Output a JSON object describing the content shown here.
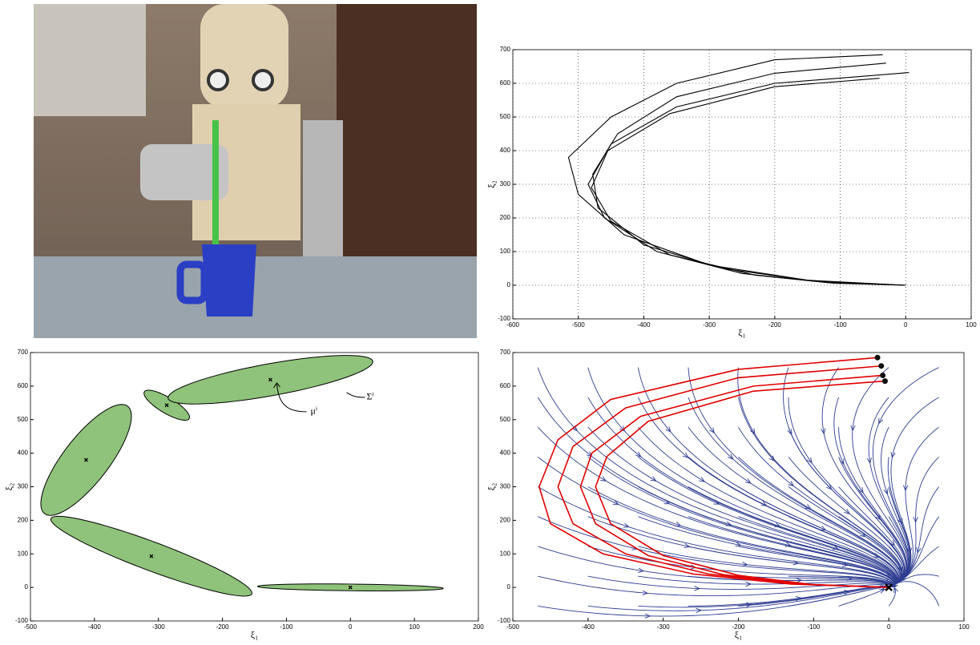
{
  "chart_data": [
    {
      "type": "line",
      "xlabel": "ξ₁",
      "ylabel": "ξ₂",
      "xlim": [
        -600,
        100
      ],
      "ylim": [
        -100,
        700
      ],
      "xticks": [
        -600,
        -500,
        -400,
        -300,
        -200,
        -100,
        0,
        100
      ],
      "yticks": [
        -100,
        0,
        100,
        200,
        300,
        400,
        500,
        600,
        700
      ],
      "grid": true,
      "series": [
        {
          "color": "#000000",
          "x": [
            -35,
            -200,
            -350,
            -450,
            -515,
            -500,
            -430,
            -300,
            -150,
            0
          ],
          "values": [
            685,
            670,
            600,
            500,
            380,
            270,
            150,
            60,
            15,
            0
          ]
        },
        {
          "color": "#000000",
          "x": [
            -30,
            -200,
            -350,
            -440,
            -478,
            -470,
            -400,
            -280,
            -140,
            0
          ],
          "values": [
            660,
            630,
            560,
            450,
            330,
            230,
            120,
            50,
            12,
            0
          ]
        },
        {
          "color": "#000000",
          "x": [
            5,
            -200,
            -350,
            -450,
            -485,
            -460,
            -380,
            -250,
            -120,
            0
          ],
          "values": [
            632,
            600,
            530,
            420,
            300,
            200,
            100,
            35,
            8,
            0
          ]
        },
        {
          "color": "#000000",
          "x": [
            -40,
            -200,
            -360,
            -455,
            -480,
            -450,
            -360,
            -230,
            -110,
            0
          ],
          "values": [
            615,
            590,
            510,
            400,
            290,
            190,
            90,
            30,
            6,
            0
          ]
        }
      ]
    },
    {
      "type": "ellipse",
      "xlabel": "ξ₁",
      "ylabel": "ξ₂",
      "xlim": [
        -500,
        200
      ],
      "ylim": [
        -100,
        700
      ],
      "xticks": [
        -500,
        -400,
        -300,
        -200,
        -100,
        0,
        100,
        200
      ],
      "yticks": [
        -100,
        0,
        100,
        200,
        300,
        400,
        500,
        600,
        700
      ],
      "grid": false,
      "color": "#8fc27a",
      "annotations": [
        "μⁱ",
        "Σⁱ"
      ],
      "components": [
        {
          "mean": [
            -413,
            380
          ],
          "cov": [
            [
              5009,
              9224
            ],
            [
              9224,
              27364
            ]
          ]
        },
        {
          "mean": [
            -311,
            93
          ],
          "cov": [
            [
              24713,
              -17264
            ],
            [
              -17264,
              14144
            ]
          ]
        },
        {
          "mean": [
            -287,
            543
          ],
          "cov": [
            [
              1267,
              -1270
            ],
            [
              -1270,
              2000
            ]
          ]
        },
        {
          "mean": [
            -125,
            619
          ],
          "cov": [
            [
              25619,
              8593
            ],
            [
              8593,
              5234
            ]
          ]
        },
        {
          "mean": [
            0,
            0
          ],
          "cov": [
            [
              21025,
              -435
            ],
            [
              -435,
              109
            ]
          ]
        }
      ]
    },
    {
      "type": "streamplot",
      "xlabel": "ξ₁",
      "ylabel": "ξ₂",
      "xlim": [
        -500,
        100
      ],
      "ylim": [
        -100,
        700
      ],
      "xticks": [
        -500,
        -400,
        -300,
        -200,
        -100,
        0,
        100
      ],
      "yticks": [
        -100,
        0,
        100,
        200,
        300,
        400,
        500,
        600,
        700
      ],
      "grid": false,
      "stream_color": "#2e3d91",
      "target": [
        0,
        0
      ],
      "series": [
        {
          "color": "#e00000",
          "x": [
            -15,
            -200,
            -370,
            -440,
            -465,
            -450,
            -380,
            -260,
            -130,
            0
          ],
          "values": [
            685,
            650,
            560,
            440,
            300,
            190,
            100,
            40,
            10,
            0
          ]
        },
        {
          "color": "#e00000",
          "x": [
            -10,
            -200,
            -350,
            -420,
            -440,
            -420,
            -350,
            -240,
            -120,
            0
          ],
          "values": [
            660,
            625,
            535,
            420,
            300,
            190,
            100,
            40,
            10,
            0
          ]
        },
        {
          "color": "#e00000",
          "x": [
            -8,
            -180,
            -330,
            -395,
            -410,
            -390,
            -320,
            -220,
            -110,
            0
          ],
          "values": [
            632,
            600,
            510,
            400,
            300,
            190,
            95,
            38,
            9,
            0
          ]
        },
        {
          "color": "#e00000",
          "x": [
            -5,
            -180,
            -320,
            -375,
            -390,
            -370,
            -300,
            -200,
            -100,
            0
          ],
          "values": [
            615,
            585,
            495,
            390,
            300,
            190,
            95,
            36,
            8,
            0
          ]
        }
      ]
    }
  ]
}
